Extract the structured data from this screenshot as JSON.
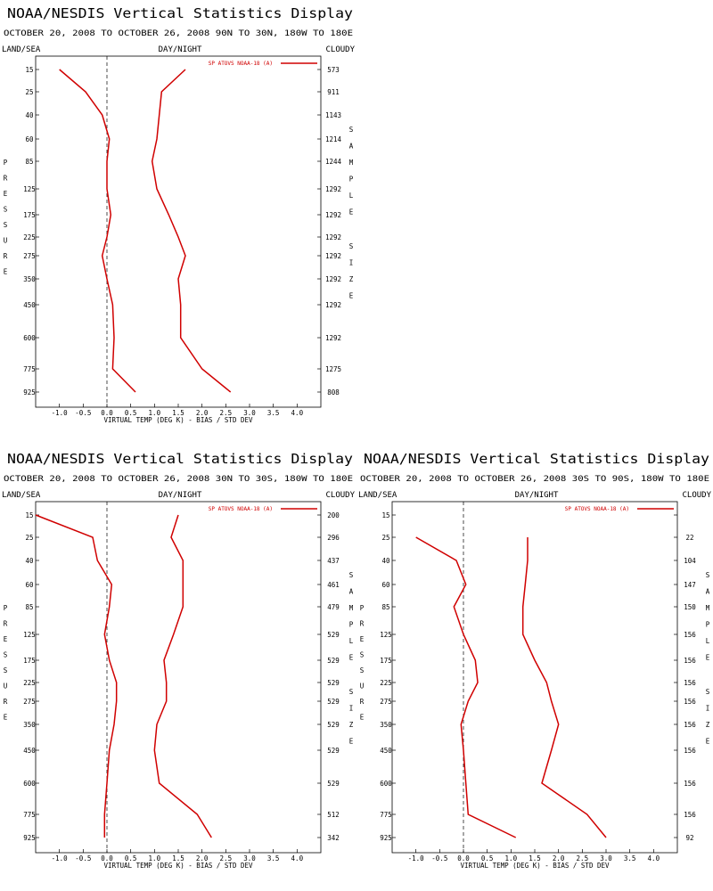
{
  "page_title": "NOAA/NESDIS Vertical Statistics Display",
  "chart_data": [
    {
      "type": "line",
      "title": "NOAA/NESDIS Vertical Statistics Display",
      "subtitle": "OCTOBER 20, 2008 TO OCTOBER 26, 2008 90N TO 30N, 180W TO 180E",
      "header_left": "LAND/SEA",
      "header_center": "DAY/NIGHT",
      "header_right": "CLOUDY",
      "xlabel": "VIRTUAL TEMP (DEG K) - BIAS / STD DEV",
      "ylabel_left": "PRESSURE",
      "ylabel_right": "SAMPLE SIZE",
      "legend": "SP ATOVS NOAA-18 (A)",
      "series_color": "#d00000",
      "xlim": [
        -1.5,
        4.5
      ],
      "xticks": [
        "-1.0",
        "-0.5",
        "0.0",
        "0.5",
        "1.0",
        "1.5",
        "2.0",
        "2.5",
        "3.0",
        "3.5",
        "4.0"
      ],
      "pressure_levels": [
        "15",
        "25",
        "40",
        "60",
        "85",
        "125",
        "175",
        "225",
        "275",
        "350",
        "450",
        "600",
        "775",
        "925"
      ],
      "sample_size": [
        "573",
        "911",
        "1143",
        "1214",
        "1244",
        "1292",
        "1292",
        "1292",
        "1292",
        "1292",
        "1292",
        "1292",
        "1275",
        "808"
      ],
      "bias": [
        -1.0,
        -0.45,
        -0.1,
        0.05,
        0.0,
        0.0,
        0.08,
        0.0,
        -0.1,
        0.0,
        0.12,
        0.15,
        0.12,
        0.6
      ],
      "std_dev": [
        1.65,
        1.15,
        1.1,
        1.05,
        0.95,
        1.05,
        1.3,
        1.5,
        1.65,
        1.5,
        1.55,
        1.55,
        2.0,
        2.6
      ]
    },
    {
      "type": "line",
      "title": "NOAA/NESDIS Vertical Statistics Display",
      "subtitle": "OCTOBER 20, 2008 TO OCTOBER 26, 2008 30N TO 30S, 180W TO 180E",
      "header_left": "LAND/SEA",
      "header_center": "DAY/NIGHT",
      "header_right": "CLOUDY",
      "xlabel": "VIRTUAL TEMP (DEG K) - BIAS / STD DEV",
      "ylabel_left": "PRESSURE",
      "ylabel_right": "SAMPLE SIZE",
      "legend": "SP ATOVS NOAA-18 (A)",
      "series_color": "#d00000",
      "xlim": [
        -1.5,
        4.5
      ],
      "xticks": [
        "-1.0",
        "-0.5",
        "0.0",
        "0.5",
        "1.0",
        "1.5",
        "2.0",
        "2.5",
        "3.0",
        "3.5",
        "4.0"
      ],
      "pressure_levels": [
        "15",
        "25",
        "40",
        "60",
        "85",
        "125",
        "175",
        "225",
        "275",
        "350",
        "450",
        "600",
        "775",
        "925"
      ],
      "sample_size": [
        "200",
        "296",
        "437",
        "461",
        "479",
        "529",
        "529",
        "529",
        "529",
        "529",
        "529",
        "529",
        "512",
        "342"
      ],
      "bias": [
        -1.5,
        -0.3,
        -0.2,
        0.1,
        0.05,
        -0.05,
        0.05,
        0.2,
        0.2,
        0.15,
        0.05,
        0.0,
        -0.05,
        -0.05
      ],
      "std_dev": [
        1.5,
        1.35,
        1.6,
        1.6,
        1.6,
        1.4,
        1.2,
        1.25,
        1.25,
        1.05,
        1.0,
        1.1,
        1.9,
        2.2
      ]
    },
    {
      "type": "line",
      "title": "NOAA/NESDIS Vertical Statistics Display",
      "subtitle": "OCTOBER 20, 2008 TO OCTOBER 26, 2008 30S TO 90S, 180W TO 180E",
      "header_left": "LAND/SEA",
      "header_center": "DAY/NIGHT",
      "header_right": "CLOUDY",
      "xlabel": "VIRTUAL TEMP (DEG K) - BIAS / STD DEV",
      "ylabel_left": "PRESSURE",
      "ylabel_right": "SAMPLE SIZE",
      "legend": "SP ATOVS NOAA-18 (A)",
      "series_color": "#d00000",
      "xlim": [
        -1.5,
        4.5
      ],
      "xticks": [
        "-1.0",
        "-0.5",
        "0.0",
        "0.5",
        "1.0",
        "1.5",
        "2.0",
        "2.5",
        "3.0",
        "3.5",
        "4.0"
      ],
      "pressure_levels": [
        "15",
        "25",
        "40",
        "60",
        "85",
        "125",
        "175",
        "225",
        "275",
        "350",
        "450",
        "600",
        "775",
        "925"
      ],
      "sample_size": [
        "",
        "22",
        "104",
        "147",
        "150",
        "156",
        "156",
        "156",
        "156",
        "156",
        "156",
        "156",
        "156",
        "92"
      ],
      "bias": [
        null,
        -1.0,
        -0.15,
        0.05,
        -0.2,
        0.0,
        0.25,
        0.3,
        0.1,
        -0.05,
        0.0,
        0.05,
        0.1,
        1.1
      ],
      "std_dev": [
        null,
        1.35,
        1.35,
        1.3,
        1.25,
        1.25,
        1.5,
        1.75,
        1.85,
        2.0,
        1.85,
        1.65,
        2.6,
        3.0
      ]
    }
  ]
}
